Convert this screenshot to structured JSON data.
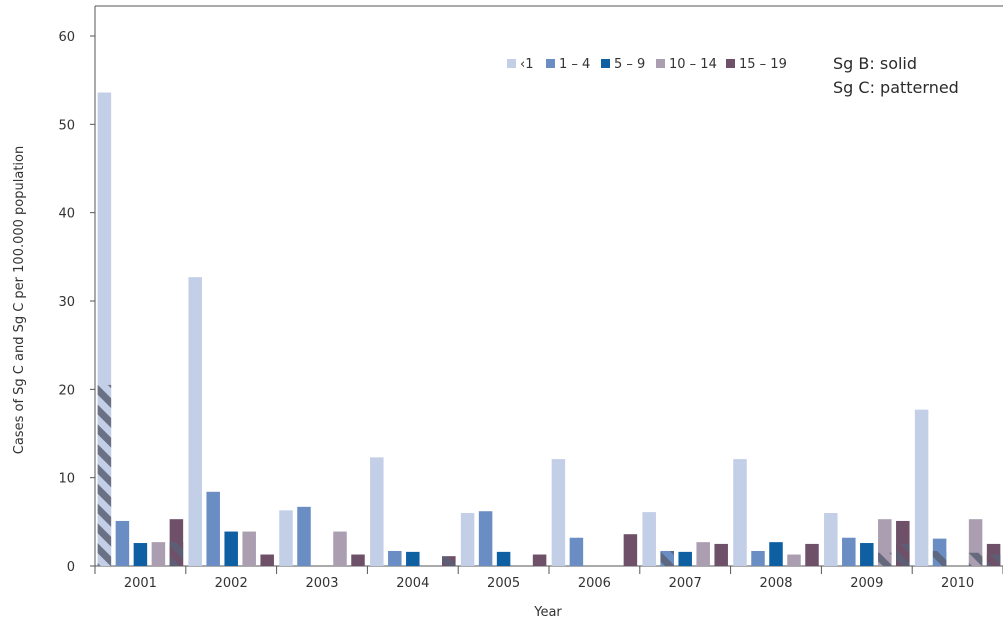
{
  "chart_data": {
    "type": "bar",
    "title": "",
    "xlabel": "Year",
    "ylabel": "Cases of Sg C and Sg C per 100.000 population",
    "ylim": [
      0,
      60
    ],
    "yticks": [
      "0",
      "10",
      "20",
      "30",
      "40",
      "50",
      "60"
    ],
    "grid": false,
    "legend_position": "top-right",
    "categories": [
      "2001",
      "2002",
      "2003",
      "2004",
      "2005",
      "2006",
      "2007",
      "2008",
      "2009",
      "2010"
    ],
    "series": [
      {
        "name": "‹1",
        "color": "#c3cfe6",
        "values": [
          53.6,
          32.7,
          6.3,
          12.3,
          6.0,
          12.1,
          6.1,
          12.1,
          6.0,
          17.7
        ],
        "sg_c_values": [
          20.5,
          0,
          0,
          0,
          0,
          0,
          0,
          0,
          0,
          0
        ]
      },
      {
        "name": "1 – 4",
        "color": "#6a8dc4",
        "values": [
          5.1,
          8.4,
          6.7,
          1.7,
          6.2,
          3.2,
          1.7,
          1.7,
          3.2,
          3.1
        ],
        "sg_c_values": [
          0,
          0,
          0,
          0,
          0,
          0,
          1.7,
          0,
          0,
          1.7
        ]
      },
      {
        "name": "5 – 9",
        "color": "#0f5fa3",
        "values": [
          2.6,
          3.9,
          0,
          1.6,
          1.6,
          0,
          1.6,
          2.7,
          2.6,
          0
        ],
        "sg_c_values": [
          0,
          0,
          0,
          0,
          0,
          0,
          0,
          0,
          0,
          0
        ]
      },
      {
        "name": "10 – 14",
        "color": "#ab9eb1",
        "values": [
          2.7,
          3.9,
          3.9,
          0,
          0,
          0,
          2.7,
          1.3,
          5.3,
          5.3
        ],
        "sg_c_values": [
          0,
          0,
          0,
          0,
          0,
          0,
          0,
          0,
          1.5,
          1.5
        ]
      },
      {
        "name": "15 – 19",
        "color": "#6e5169",
        "values": [
          5.3,
          1.3,
          1.3,
          1.1,
          1.3,
          3.6,
          2.5,
          2.5,
          5.1,
          2.5
        ],
        "sg_c_values": [
          2.7,
          0,
          0,
          1.1,
          0,
          0,
          0,
          0,
          2.5,
          1.3
        ]
      }
    ],
    "notes": [
      "Sg B: solid",
      "Sg C: patterned"
    ]
  }
}
